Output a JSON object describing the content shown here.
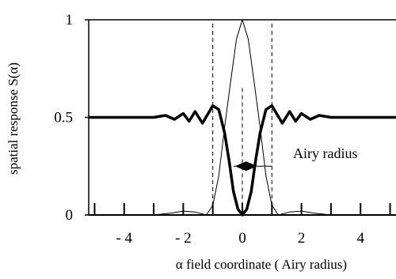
{
  "chart_data": {
    "type": "line",
    "title": "",
    "xlabel": "α  field coordinate ( Airy radius)",
    "ylabel": "spatial response S(α)",
    "xlim": [
      -5.2,
      5.2
    ],
    "ylim": [
      0,
      1
    ],
    "x_ticks": [
      -4,
      -2,
      0,
      2,
      4
    ],
    "x_tick_labels": [
      "- 4",
      "- 2",
      "0",
      "2",
      "4"
    ],
    "y_ticks": [
      0,
      0.5,
      1
    ],
    "y_tick_labels": [
      "0",
      "0.5",
      "1"
    ],
    "grid": false,
    "legend": "none",
    "series": [
      {
        "style": "thin",
        "x": [
          -5.2,
          -4.0,
          -3.0,
          -2.4,
          -2.0,
          -1.6,
          -1.22,
          -1.0,
          -0.8,
          -0.6,
          -0.4,
          -0.2,
          0,
          0.2,
          0.4,
          0.6,
          0.8,
          1.0,
          1.22,
          1.6,
          2.0,
          2.4,
          3.0,
          4.0,
          5.2
        ],
        "y": [
          0.0,
          0.0,
          0.0,
          0.01,
          0.02,
          0.015,
          0.0,
          0.05,
          0.2,
          0.45,
          0.68,
          0.9,
          1.0,
          0.9,
          0.68,
          0.45,
          0.2,
          0.05,
          0.0,
          0.015,
          0.02,
          0.01,
          0.0,
          0.0,
          0.0
        ]
      },
      {
        "style": "thick",
        "x": [
          -5.2,
          -3.0,
          -2.6,
          -2.3,
          -2.0,
          -1.8,
          -1.6,
          -1.35,
          -1.0,
          -0.8,
          -0.6,
          -0.45,
          -0.3,
          -0.15,
          0,
          0.15,
          0.3,
          0.45,
          0.6,
          0.8,
          1.0,
          1.35,
          1.6,
          1.8,
          2.0,
          2.3,
          2.6,
          3.0,
          5.2
        ],
        "y": [
          0.5,
          0.5,
          0.51,
          0.49,
          0.52,
          0.48,
          0.53,
          0.47,
          0.56,
          0.54,
          0.42,
          0.28,
          0.12,
          0.03,
          0.0,
          0.03,
          0.12,
          0.28,
          0.42,
          0.54,
          0.56,
          0.47,
          0.53,
          0.48,
          0.52,
          0.49,
          0.51,
          0.5,
          0.5
        ]
      }
    ],
    "reference_lines": [
      {
        "x": -1.0,
        "style": "dashed"
      },
      {
        "x": 1.0,
        "style": "dashed"
      }
    ],
    "annotation": {
      "text": "Airy radius",
      "arrow_from_x": -0.45,
      "arrow_to_x": 1.0,
      "y": 0.25
    }
  }
}
